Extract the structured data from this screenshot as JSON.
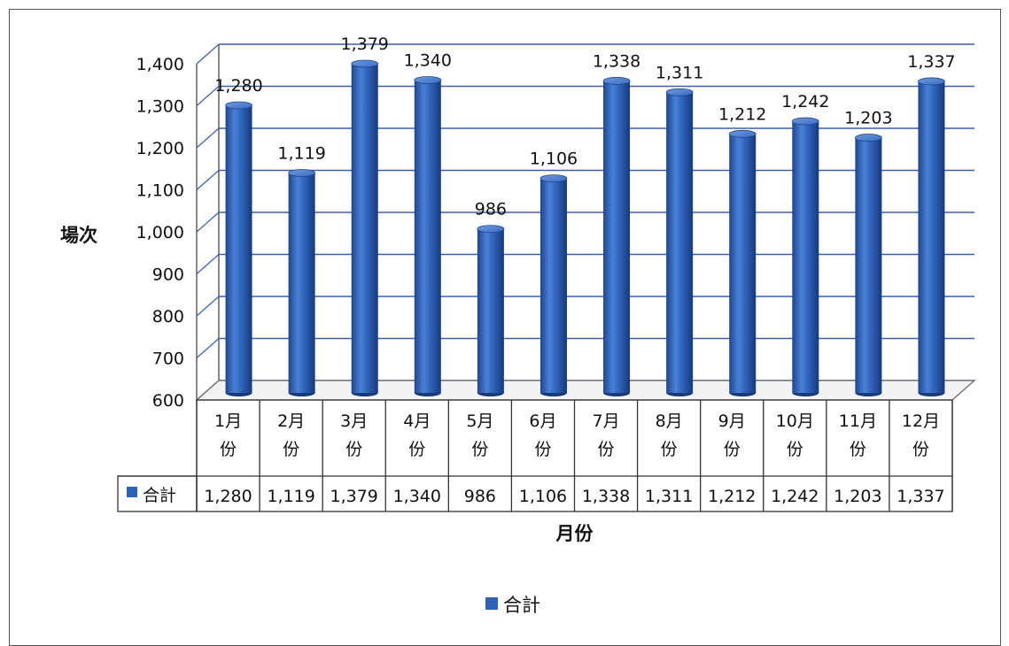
{
  "chart_data": {
    "type": "bar",
    "style": "3d-cylinder",
    "categories": [
      "1月份",
      "2月份",
      "3月份",
      "4月份",
      "5月份",
      "6月份",
      "7月份",
      "8月份",
      "9月份",
      "10月份",
      "11月份",
      "12月份"
    ],
    "category_lines": [
      [
        "1月",
        "份"
      ],
      [
        "2月",
        "份"
      ],
      [
        "3月",
        "份"
      ],
      [
        "4月",
        "份"
      ],
      [
        "5月",
        "份"
      ],
      [
        "6月",
        "份"
      ],
      [
        "7月",
        "份"
      ],
      [
        "8月",
        "份"
      ],
      [
        "9月",
        "份"
      ],
      [
        "10月",
        "份"
      ],
      [
        "11月",
        "份"
      ],
      [
        "12月",
        "份"
      ]
    ],
    "series": [
      {
        "name": "合計",
        "color": "#2e62b8",
        "values": [
          1280,
          1119,
          1379,
          1340,
          986,
          1106,
          1338,
          1311,
          1212,
          1242,
          1203,
          1337
        ],
        "labels": [
          "1,280",
          "1,119",
          "1,379",
          "1,340",
          "986",
          "1,106",
          "1,338",
          "1,311",
          "1,212",
          "1,242",
          "1,203",
          "1,337"
        ]
      }
    ],
    "ylabel": "場次",
    "xlabel": "月份",
    "ylim": [
      600,
      1400
    ],
    "yticks": [
      600,
      700,
      800,
      900,
      1000,
      1100,
      1200,
      1300,
      1400
    ],
    "ytick_labels": [
      "600",
      "700",
      "800",
      "900",
      "1,000",
      "1,100",
      "1,200",
      "1,300",
      "1,400"
    ],
    "grid": true,
    "data_table": true,
    "legend": {
      "position": "bottom",
      "entries": [
        "合計"
      ]
    }
  }
}
